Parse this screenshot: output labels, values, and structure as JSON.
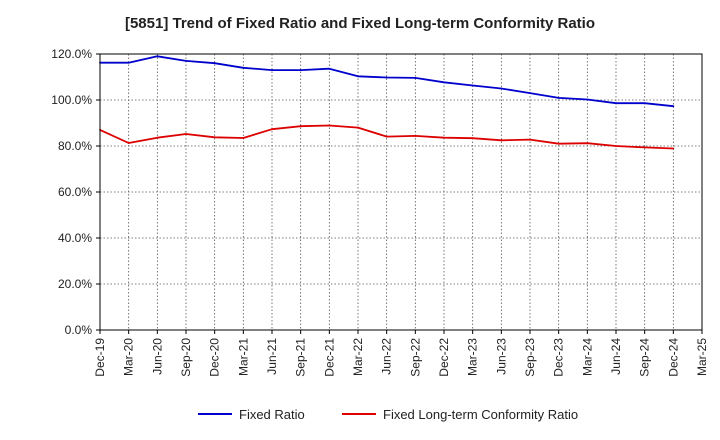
{
  "chart_data": {
    "type": "line",
    "title": "[5851]  Trend of Fixed Ratio and Fixed Long-term Conformity Ratio",
    "xlabel": "",
    "ylabel": "",
    "x": [
      "Dec-19",
      "Mar-20",
      "Jun-20",
      "Sep-20",
      "Dec-20",
      "Mar-21",
      "Jun-21",
      "Sep-21",
      "Dec-21",
      "Mar-22",
      "Jun-22",
      "Sep-22",
      "Dec-22",
      "Mar-23",
      "Jun-23",
      "Sep-23",
      "Dec-23",
      "Mar-24",
      "Jun-24",
      "Sep-24",
      "Dec-24",
      "Mar-25"
    ],
    "ylim": [
      0,
      120
    ],
    "yticks": [
      0,
      20,
      40,
      60,
      80,
      100,
      120
    ],
    "ytick_labels": [
      "0.0%",
      "20.0%",
      "40.0%",
      "60.0%",
      "80.0%",
      "100.0%",
      "120.0%"
    ],
    "grid": true,
    "legend_position": "bottom",
    "series": [
      {
        "name": "Fixed Ratio",
        "color": "#0000cc",
        "values": [
          116.2,
          116.2,
          119.0,
          117.0,
          116.0,
          114.0,
          113.0,
          113.0,
          113.6,
          110.3,
          109.8,
          109.6,
          107.7,
          106.3,
          105.0,
          103.0,
          100.9,
          100.2,
          98.6,
          98.6,
          97.3,
          null
        ]
      },
      {
        "name": "Fixed Long-term Conformity Ratio",
        "color": "#dd0000",
        "values": [
          87.0,
          81.3,
          83.6,
          85.2,
          83.8,
          83.5,
          87.3,
          88.6,
          88.9,
          88.0,
          84.1,
          84.4,
          83.6,
          83.4,
          82.5,
          82.8,
          81.0,
          81.2,
          80.0,
          79.4,
          78.9,
          null
        ]
      }
    ]
  }
}
